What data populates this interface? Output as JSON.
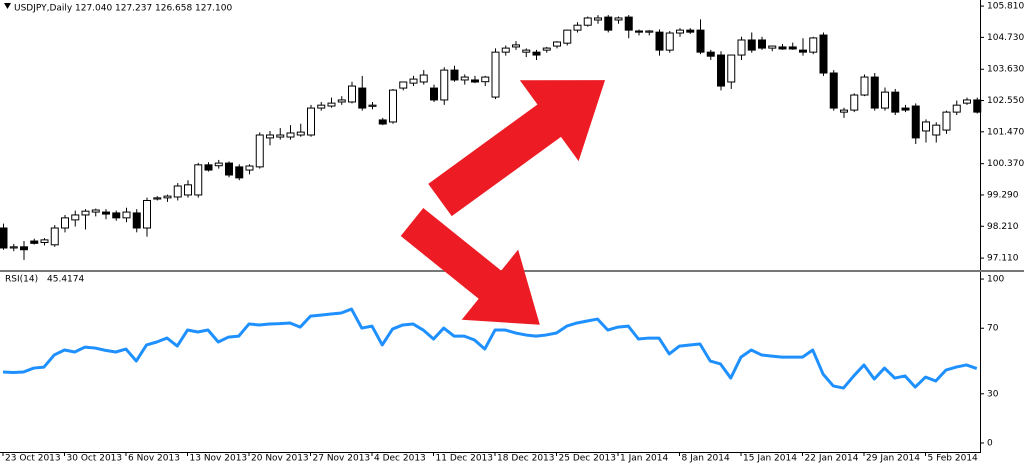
{
  "chart_data": [
    {
      "type": "candlestick",
      "title": "USDJPY,Daily",
      "header_values": [
        {
          "value": 127.04,
          "label": "127.040"
        },
        {
          "value": 127.237,
          "label": "127.237"
        },
        {
          "value": 126.658,
          "label": "126.658"
        },
        {
          "value": 127.1,
          "label": "127.100"
        }
      ],
      "ylim": [
        96.7,
        106.02
      ],
      "yticks": [
        {
          "value": 105.81,
          "label": "105.810"
        },
        {
          "value": 104.73,
          "label": "104.730"
        },
        {
          "value": 103.63,
          "label": "103.630"
        },
        {
          "value": 102.55,
          "label": "102.550"
        },
        {
          "value": 101.47,
          "label": "101.470"
        },
        {
          "value": 100.37,
          "label": "100.370"
        },
        {
          "value": 99.29,
          "label": "99.290"
        },
        {
          "value": 98.21,
          "label": "98.210"
        },
        {
          "value": 97.11,
          "label": "97.110"
        }
      ],
      "up_color": "#ffffff",
      "down_color": "#000000",
      "edge_color": "#000000",
      "open": [
        98.15,
        97.46,
        97.5,
        97.7,
        97.65,
        97.57,
        98.15,
        98.43,
        98.6,
        98.7,
        98.7,
        98.67,
        98.5,
        98.67,
        98.15,
        99.15,
        99.19,
        99.22,
        99.29,
        99.29,
        100.33,
        100.3,
        100.39,
        100.26,
        100.15,
        100.26,
        101.26,
        101.29,
        101.29,
        101.36,
        101.36,
        102.29,
        102.36,
        102.5,
        102.5,
        102.98,
        102.35,
        101.88,
        101.81,
        102.98,
        103.15,
        103.19,
        102.98,
        102.57,
        103.6,
        103.26,
        103.26,
        103.2,
        102.67,
        104.22,
        104.4,
        104.22,
        104.22,
        104.29,
        104.43,
        104.53,
        104.98,
        105.15,
        105.33,
        105.43,
        105.33,
        105.43,
        104.95,
        104.91,
        104.91,
        104.29,
        104.88,
        104.98,
        104.98,
        104.22,
        104.12,
        103.19,
        104.12,
        104.64,
        104.64,
        104.36,
        104.4,
        104.4,
        104.29,
        104.22,
        104.81,
        103.5,
        102.15,
        102.22,
        102.74,
        103.36,
        102.29,
        102.84,
        102.29,
        102.36,
        101.5,
        101.36,
        101.53,
        102.15,
        102.46,
        102.57
      ],
      "high": [
        98.3,
        97.6,
        97.7,
        97.78,
        97.8,
        98.25,
        98.6,
        98.75,
        98.8,
        98.82,
        98.8,
        98.75,
        98.85,
        98.8,
        99.2,
        99.25,
        99.3,
        99.7,
        99.8,
        100.4,
        100.42,
        100.5,
        100.45,
        100.35,
        100.35,
        101.45,
        101.5,
        101.6,
        101.7,
        101.75,
        102.4,
        102.5,
        102.65,
        102.7,
        103.2,
        103.4,
        102.5,
        101.95,
        102.95,
        103.2,
        103.4,
        103.6,
        103.1,
        103.7,
        103.75,
        103.45,
        103.4,
        103.4,
        104.35,
        104.45,
        104.6,
        104.35,
        104.3,
        104.4,
        104.6,
        105.0,
        105.25,
        105.45,
        105.5,
        105.5,
        105.45,
        105.5,
        105.0,
        104.98,
        105.0,
        104.95,
        105.05,
        105.05,
        105.35,
        104.3,
        104.25,
        104.1,
        104.75,
        104.9,
        104.75,
        104.45,
        104.5,
        104.55,
        104.7,
        104.75,
        104.9,
        103.6,
        102.3,
        102.8,
        103.45,
        103.5,
        103.0,
        102.95,
        102.4,
        102.45,
        101.9,
        101.8,
        102.2,
        102.55,
        102.65,
        102.65
      ],
      "low": [
        97.4,
        97.35,
        97.05,
        97.58,
        97.55,
        97.5,
        98.0,
        98.2,
        98.1,
        98.55,
        98.45,
        98.4,
        98.35,
        98.0,
        97.85,
        99.1,
        99.05,
        99.1,
        99.2,
        99.2,
        100.1,
        100.2,
        99.9,
        99.8,
        100.0,
        100.2,
        101.0,
        101.2,
        101.2,
        101.3,
        101.3,
        102.2,
        102.3,
        102.4,
        102.45,
        102.2,
        102.25,
        101.7,
        101.75,
        102.9,
        103.05,
        103.1,
        102.5,
        102.4,
        103.2,
        103.1,
        103.15,
        103.05,
        102.6,
        104.1,
        104.3,
        104.05,
        103.95,
        104.2,
        104.35,
        104.45,
        104.9,
        105.1,
        105.2,
        104.9,
        105.2,
        104.7,
        104.8,
        104.8,
        104.1,
        104.2,
        104.75,
        104.85,
        104.15,
        103.95,
        102.9,
        102.95,
        103.95,
        104.2,
        104.3,
        104.25,
        104.3,
        104.3,
        104.1,
        104.15,
        103.4,
        102.2,
        101.95,
        102.15,
        102.7,
        102.2,
        102.2,
        102.05,
        102.15,
        101.05,
        101.1,
        101.1,
        101.4,
        102.05,
        102.4,
        102.1
      ],
      "close": [
        97.46,
        97.5,
        97.4,
        97.62,
        97.74,
        98.15,
        98.5,
        98.6,
        98.73,
        98.77,
        98.63,
        98.5,
        98.7,
        98.15,
        99.1,
        99.19,
        99.25,
        99.6,
        99.64,
        100.33,
        100.15,
        100.39,
        99.98,
        99.88,
        100.29,
        101.36,
        101.36,
        101.36,
        101.43,
        101.46,
        102.29,
        102.39,
        102.46,
        102.57,
        103.05,
        102.29,
        102.39,
        101.74,
        102.91,
        103.19,
        103.29,
        103.43,
        102.57,
        103.6,
        103.26,
        103.36,
        103.19,
        103.36,
        104.22,
        104.36,
        104.47,
        104.29,
        104.12,
        104.36,
        104.57,
        104.98,
        105.15,
        105.4,
        105.4,
        104.98,
        105.4,
        104.98,
        104.91,
        104.95,
        104.29,
        104.88,
        104.98,
        104.91,
        104.22,
        104.08,
        103.05,
        104.12,
        104.64,
        104.29,
        104.36,
        104.43,
        104.33,
        104.33,
        104.22,
        104.71,
        103.5,
        102.29,
        102.22,
        102.74,
        103.36,
        102.29,
        102.84,
        102.15,
        102.22,
        101.26,
        101.81,
        101.7,
        102.15,
        102.39,
        102.57,
        102.15
      ]
    },
    {
      "type": "line",
      "title": "RSI(14)",
      "ylim": [
        -5.5,
        104.3
      ],
      "yticks": [
        100,
        70,
        30,
        0
      ],
      "categories": [
        "23 Oct 2013",
        null,
        null,
        null,
        null,
        null,
        "30 Oct 2013",
        null,
        null,
        null,
        null,
        null,
        "6 Nov 2013",
        null,
        null,
        null,
        null,
        null,
        "13 Nov 2013",
        null,
        null,
        null,
        null,
        null,
        "20 Nov 2013",
        null,
        null,
        null,
        null,
        null,
        "27 Nov 2013",
        null,
        null,
        null,
        null,
        null,
        "4 Dec 2013",
        null,
        null,
        null,
        null,
        null,
        "11 Dec 2013",
        null,
        null,
        null,
        null,
        null,
        "18 Dec 2013",
        null,
        null,
        null,
        null,
        null,
        "25 Dec 2013",
        null,
        null,
        null,
        null,
        null,
        "1 Jan 2014",
        null,
        null,
        null,
        null,
        null,
        "8 Jan 2014",
        null,
        null,
        null,
        null,
        null,
        "15 Jan 2014",
        null,
        null,
        null,
        null,
        null,
        "22 Jan 2014",
        null,
        null,
        null,
        null,
        null,
        "29 Jan 2014",
        null,
        null,
        null,
        null,
        null,
        "5 Feb 2014",
        null,
        null,
        null,
        null,
        null
      ],
      "series": [
        {
          "name": "RSI(14)",
          "color": "#1e90ff",
          "values": [
            43.3,
            43.0,
            43.3,
            45.7,
            46.3,
            53.7,
            56.7,
            55.5,
            58.5,
            57.9,
            56.5,
            55.5,
            57.3,
            50.0,
            59.8,
            61.6,
            64.0,
            59.1,
            68.9,
            67.7,
            68.9,
            61.6,
            64.6,
            65.2,
            72.6,
            72.0,
            72.6,
            72.8,
            73.2,
            70.7,
            77.4,
            78.0,
            78.7,
            79.3,
            81.7,
            70.1,
            71.3,
            59.8,
            69.5,
            72.0,
            72.6,
            68.9,
            63.4,
            70.1,
            65.2,
            65.2,
            62.8,
            57.3,
            68.9,
            68.9,
            67.1,
            65.9,
            65.2,
            65.9,
            67.1,
            71.3,
            73.2,
            74.4,
            75.6,
            68.9,
            70.7,
            71.3,
            63.4,
            64.0,
            64.0,
            54.3,
            59.1,
            59.8,
            60.4,
            50.0,
            48.2,
            39.6,
            52.4,
            56.7,
            53.7,
            53.0,
            52.4,
            52.4,
            52.4,
            56.7,
            42.1,
            34.8,
            33.5,
            40.9,
            47.6,
            39.0,
            45.7,
            39.6,
            40.9,
            34.1,
            40.2,
            37.8,
            44.5,
            46.3,
            47.6,
            45.4174
          ]
        }
      ]
    }
  ]
}
